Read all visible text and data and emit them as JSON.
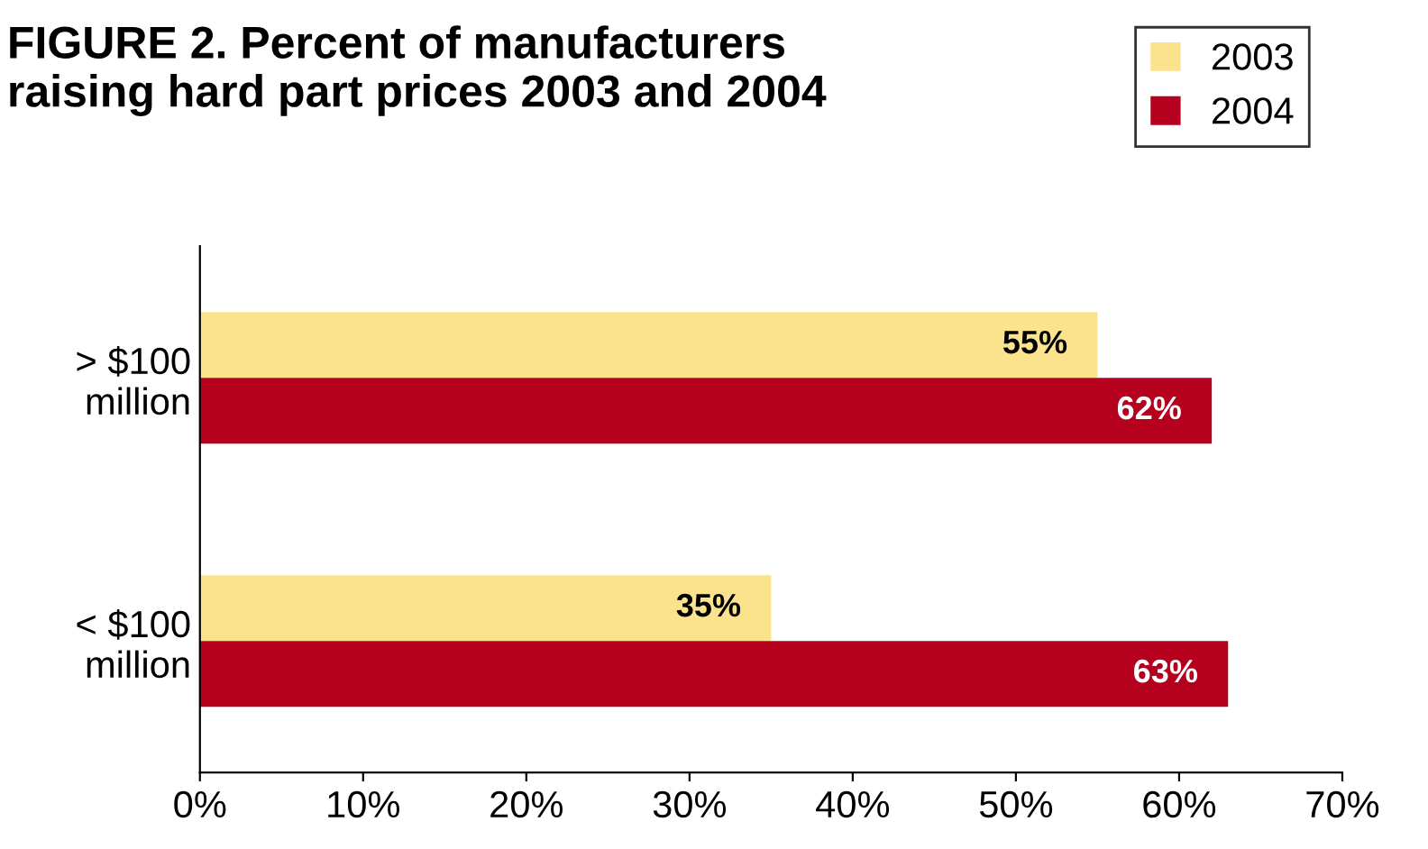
{
  "chart_data": {
    "type": "bar",
    "orientation": "horizontal",
    "title": "FIGURE 2. Percent of manufacturers\nraising hard part prices 2003 and 2004",
    "categories": [
      "> $100\nmillion",
      "< $100\nmillion"
    ],
    "series": [
      {
        "name": "2003",
        "color": "#fbe38e",
        "values": [
          55,
          35
        ],
        "value_labels": [
          "55%",
          "35%"
        ]
      },
      {
        "name": "2004",
        "color": "#b5001e",
        "values": [
          62,
          63
        ],
        "value_labels": [
          "62%",
          "63%"
        ]
      }
    ],
    "xlim": [
      0,
      70
    ],
    "xticks": [
      {
        "value": 0,
        "label": "0%"
      },
      {
        "value": 10,
        "label": "10%"
      },
      {
        "value": 20,
        "label": "20%"
      },
      {
        "value": 30,
        "label": "30%"
      },
      {
        "value": 40,
        "label": "40%"
      },
      {
        "value": 50,
        "label": "50%"
      },
      {
        "value": 60,
        "label": "60%"
      },
      {
        "value": 70,
        "label": "70%"
      }
    ],
    "grid": false,
    "legend": "top right"
  }
}
